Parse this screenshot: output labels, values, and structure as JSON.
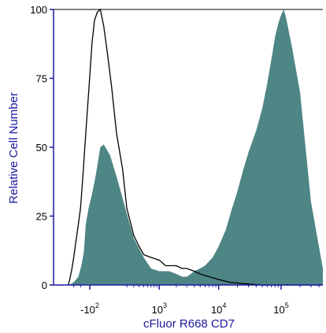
{
  "chart_data": {
    "type": "area",
    "xlabel": "cFluor R668 CD7",
    "ylabel": "Relative Cell Number",
    "x_scale": "biexponential",
    "xlim": [
      -400,
      500000
    ],
    "ylim": [
      0,
      100
    ],
    "y_ticks": [
      0,
      25,
      50,
      75,
      100
    ],
    "x_ticks": [
      {
        "value": -100,
        "base": "-10",
        "exp": "2"
      },
      {
        "value": 1000,
        "base": "10",
        "exp": "3"
      },
      {
        "value": 10000,
        "base": "10",
        "exp": "4"
      },
      {
        "value": 100000,
        "base": "10",
        "exp": "5"
      }
    ],
    "grid": false,
    "series": [
      {
        "style": "filled",
        "color": "#4e8585",
        "x": [
          -400,
          -330,
          -280,
          -230,
          -190,
          -160,
          -140,
          -110,
          -80,
          -50,
          -20,
          0,
          40,
          100,
          200,
          300,
          500,
          700,
          1000,
          1500,
          2000,
          2500,
          3000,
          3500,
          4000,
          5000,
          6000,
          8000,
          10000,
          13000,
          16000,
          20000,
          25000,
          30000,
          40000,
          50000,
          60000,
          70000,
          80000,
          90000,
          100000,
          110000,
          120000,
          150000,
          200000,
          300000,
          500000
        ],
        "y": [
          0,
          0.5,
          1.5,
          3,
          7,
          12,
          22,
          28,
          33,
          40,
          50,
          51,
          47,
          38,
          26,
          17,
          10,
          6,
          5,
          5,
          4,
          3,
          3,
          4,
          5,
          6,
          7,
          10,
          14,
          20,
          27,
          34,
          42,
          48,
          56,
          64,
          73,
          82,
          90,
          95,
          98,
          100,
          97,
          86,
          70,
          30,
          6
        ]
      },
      {
        "style": "outline",
        "color": "#000000",
        "x": [
          -400,
          -370,
          -330,
          -300,
          -270,
          -230,
          -200,
          -170,
          -140,
          -110,
          -80,
          -60,
          -40,
          -20,
          0,
          20,
          50,
          90,
          150,
          200,
          300,
          400,
          500,
          700,
          1000,
          1300,
          1600,
          2000,
          2500,
          3000,
          4000,
          5000,
          7000,
          10000,
          15000,
          25000,
          50000,
          100000,
          500000
        ],
        "y": [
          0,
          2,
          6,
          10,
          15,
          22,
          28,
          40,
          55,
          70,
          88,
          96,
          99,
          100,
          94,
          85,
          72,
          55,
          42,
          28,
          18,
          14,
          11,
          10,
          9,
          7,
          7,
          7,
          6,
          6,
          5,
          4,
          3,
          2,
          1,
          0.5,
          0,
          0,
          0
        ]
      }
    ]
  }
}
